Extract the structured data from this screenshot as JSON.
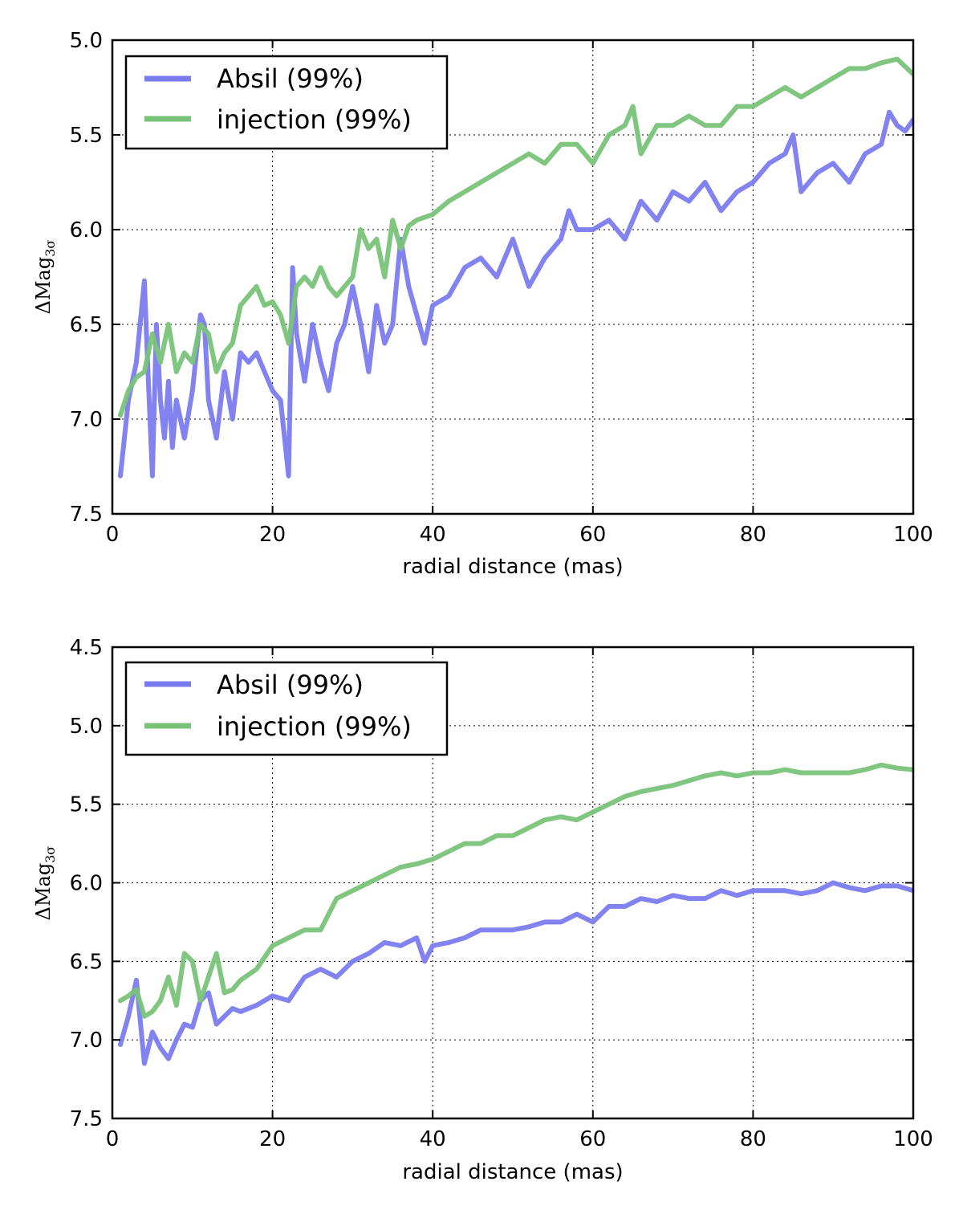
{
  "chart_data": [
    {
      "type": "line",
      "xlabel": "radial distance (mas)",
      "ylabel": {
        "main": "ΔMag",
        "sub": "3σ"
      },
      "xlim": [
        0,
        100
      ],
      "ylim": [
        7.5,
        5.0
      ],
      "y_inverted": true,
      "grid": true,
      "legend_position": "top-left",
      "xticks": [
        0,
        20,
        40,
        60,
        80,
        100
      ],
      "yticks": [
        5.0,
        5.5,
        6.0,
        6.5,
        7.0,
        7.5
      ],
      "xtick_labels": [
        "0",
        "20",
        "40",
        "60",
        "80",
        "100"
      ],
      "ytick_labels": [
        "5.0",
        "5.5",
        "6.0",
        "6.5",
        "7.0",
        "7.5"
      ],
      "series": [
        {
          "name": "Absil (99%)",
          "color": "#7b7bf0",
          "x": [
            1,
            2,
            3,
            4,
            4.5,
            5,
            5.5,
            6,
            6.5,
            7,
            7.5,
            8,
            9,
            10,
            11,
            11.5,
            12,
            13,
            14,
            15,
            16,
            17,
            18,
            19,
            20,
            21,
            22,
            22.5,
            23,
            24,
            25,
            26,
            27,
            28,
            29,
            30,
            31,
            32,
            33,
            34,
            35,
            36,
            37,
            38,
            39,
            40,
            42,
            44,
            46,
            48,
            50,
            52,
            54,
            56,
            57,
            58,
            60,
            62,
            64,
            66,
            68,
            70,
            72,
            74,
            76,
            78,
            80,
            82,
            84,
            85,
            86,
            88,
            90,
            92,
            94,
            96,
            97,
            98,
            99,
            100
          ],
          "values": [
            7.3,
            6.9,
            6.7,
            6.27,
            6.8,
            7.3,
            6.5,
            6.9,
            7.1,
            6.8,
            7.15,
            6.9,
            7.1,
            6.85,
            6.45,
            6.5,
            6.9,
            7.1,
            6.75,
            7.0,
            6.65,
            6.7,
            6.65,
            6.75,
            6.85,
            6.9,
            7.3,
            6.2,
            6.55,
            6.8,
            6.5,
            6.7,
            6.85,
            6.6,
            6.5,
            6.3,
            6.5,
            6.75,
            6.4,
            6.6,
            6.5,
            6.05,
            6.3,
            6.45,
            6.6,
            6.4,
            6.35,
            6.2,
            6.15,
            6.25,
            6.05,
            6.3,
            6.15,
            6.05,
            5.9,
            6.0,
            6.0,
            5.95,
            6.05,
            5.85,
            5.95,
            5.8,
            5.85,
            5.75,
            5.9,
            5.8,
            5.75,
            5.65,
            5.6,
            5.5,
            5.8,
            5.7,
            5.65,
            5.75,
            5.6,
            5.55,
            5.38,
            5.45,
            5.48,
            5.42
          ]
        },
        {
          "name": "injection (99%)",
          "color": "#79c379",
          "x": [
            1,
            2,
            3,
            4,
            5,
            6,
            7,
            8,
            9,
            10,
            11,
            12,
            13,
            14,
            15,
            16,
            17,
            18,
            19,
            20,
            21,
            22,
            23,
            24,
            25,
            26,
            27,
            28,
            29,
            30,
            31,
            32,
            33,
            34,
            35,
            36,
            37,
            38,
            40,
            42,
            44,
            46,
            48,
            50,
            52,
            54,
            56,
            58,
            60,
            62,
            64,
            65,
            66,
            68,
            70,
            72,
            74,
            76,
            78,
            80,
            82,
            84,
            86,
            88,
            90,
            92,
            94,
            96,
            98,
            100
          ],
          "values": [
            6.98,
            6.85,
            6.78,
            6.75,
            6.55,
            6.7,
            6.5,
            6.75,
            6.65,
            6.7,
            6.5,
            6.55,
            6.75,
            6.65,
            6.6,
            6.4,
            6.35,
            6.3,
            6.4,
            6.38,
            6.45,
            6.6,
            6.3,
            6.25,
            6.3,
            6.2,
            6.3,
            6.35,
            6.3,
            6.25,
            6.0,
            6.1,
            6.05,
            6.25,
            5.95,
            6.1,
            5.98,
            5.95,
            5.92,
            5.85,
            5.8,
            5.75,
            5.7,
            5.65,
            5.6,
            5.65,
            5.55,
            5.55,
            5.65,
            5.5,
            5.45,
            5.35,
            5.6,
            5.45,
            5.45,
            5.4,
            5.45,
            5.45,
            5.35,
            5.35,
            5.3,
            5.25,
            5.3,
            5.25,
            5.2,
            5.15,
            5.15,
            5.12,
            5.1,
            5.18
          ]
        }
      ]
    },
    {
      "type": "line",
      "xlabel": "radial distance (mas)",
      "ylabel": {
        "main": "ΔMag",
        "sub": "3σ"
      },
      "xlim": [
        0,
        100
      ],
      "ylim": [
        7.5,
        4.5
      ],
      "y_inverted": true,
      "grid": true,
      "legend_position": "top-left",
      "xticks": [
        0,
        20,
        40,
        60,
        80,
        100
      ],
      "yticks": [
        4.5,
        5.0,
        5.5,
        6.0,
        6.5,
        7.0,
        7.5
      ],
      "xtick_labels": [
        "0",
        "20",
        "40",
        "60",
        "80",
        "100"
      ],
      "ytick_labels": [
        "4.5",
        "5.0",
        "5.5",
        "6.0",
        "6.5",
        "7.0",
        "7.5"
      ],
      "series": [
        {
          "name": "Absil (99%)",
          "color": "#7b7bf0",
          "x": [
            1,
            2,
            3,
            4,
            5,
            6,
            7,
            8,
            9,
            10,
            11,
            12,
            13,
            14,
            15,
            16,
            18,
            20,
            22,
            24,
            26,
            28,
            30,
            32,
            34,
            36,
            38,
            39,
            40,
            42,
            44,
            46,
            48,
            50,
            52,
            54,
            56,
            58,
            60,
            62,
            64,
            66,
            68,
            70,
            72,
            74,
            76,
            78,
            80,
            82,
            84,
            86,
            88,
            90,
            92,
            94,
            96,
            98,
            100
          ],
          "values": [
            7.03,
            6.85,
            6.62,
            7.15,
            6.95,
            7.05,
            7.12,
            7.0,
            6.9,
            6.92,
            6.75,
            6.7,
            6.9,
            6.85,
            6.8,
            6.82,
            6.78,
            6.72,
            6.75,
            6.6,
            6.55,
            6.6,
            6.5,
            6.45,
            6.38,
            6.4,
            6.35,
            6.5,
            6.4,
            6.38,
            6.35,
            6.3,
            6.3,
            6.3,
            6.28,
            6.25,
            6.25,
            6.2,
            6.25,
            6.15,
            6.15,
            6.1,
            6.12,
            6.08,
            6.1,
            6.1,
            6.05,
            6.08,
            6.05,
            6.05,
            6.05,
            6.07,
            6.05,
            6.0,
            6.03,
            6.05,
            6.02,
            6.02,
            6.05
          ]
        },
        {
          "name": "injection (99%)",
          "color": "#79c379",
          "x": [
            1,
            2,
            3,
            4,
            5,
            6,
            7,
            8,
            9,
            10,
            11,
            12,
            13,
            14,
            15,
            16,
            18,
            20,
            22,
            24,
            26,
            28,
            30,
            32,
            34,
            36,
            38,
            40,
            42,
            44,
            46,
            48,
            50,
            52,
            54,
            56,
            58,
            60,
            62,
            64,
            66,
            68,
            70,
            72,
            74,
            76,
            78,
            80,
            82,
            84,
            86,
            88,
            90,
            92,
            94,
            96,
            98,
            100
          ],
          "values": [
            6.75,
            6.72,
            6.68,
            6.85,
            6.82,
            6.75,
            6.6,
            6.78,
            6.45,
            6.5,
            6.75,
            6.6,
            6.45,
            6.7,
            6.68,
            6.62,
            6.55,
            6.4,
            6.35,
            6.3,
            6.3,
            6.1,
            6.05,
            6.0,
            5.95,
            5.9,
            5.88,
            5.85,
            5.8,
            5.75,
            5.75,
            5.7,
            5.7,
            5.65,
            5.6,
            5.58,
            5.6,
            5.55,
            5.5,
            5.45,
            5.42,
            5.4,
            5.38,
            5.35,
            5.32,
            5.3,
            5.32,
            5.3,
            5.3,
            5.28,
            5.3,
            5.3,
            5.3,
            5.3,
            5.28,
            5.25,
            5.27,
            5.28
          ]
        }
      ]
    }
  ]
}
